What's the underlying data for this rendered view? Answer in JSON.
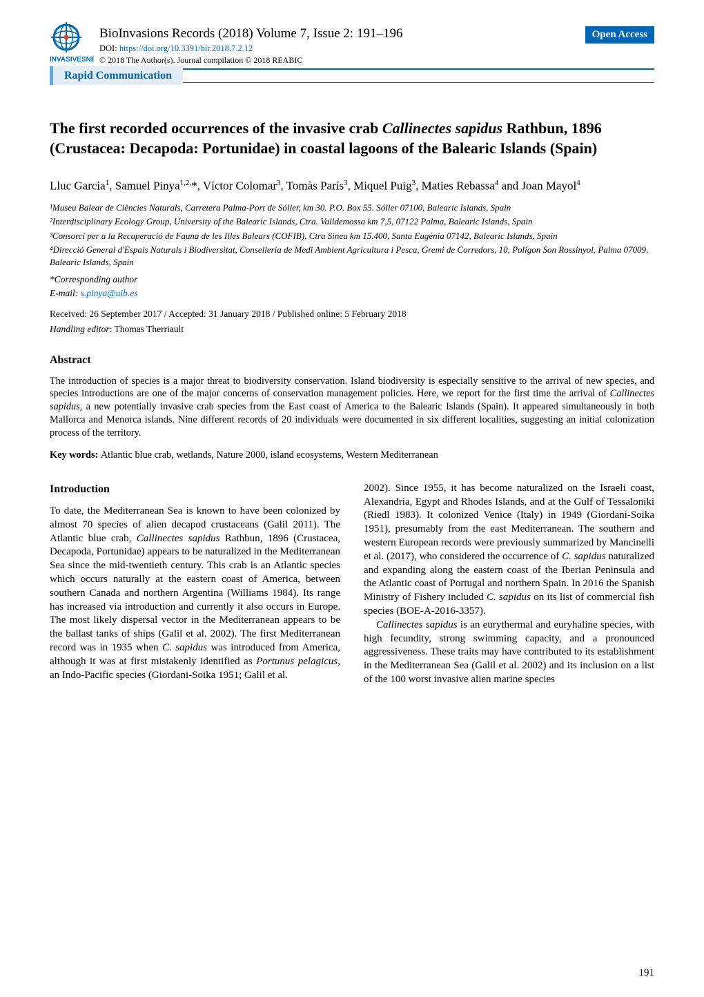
{
  "journal": {
    "title": "BioInvasions Records (2018) Volume 7, Issue 2: 191–196",
    "doi_label": "DOI: ",
    "doi_url": "https://doi.org/10.3391/bir.2018.7.2.12",
    "copyright": "© 2018 The Author(s). Journal compilation © 2018 REABIC",
    "open_access_label": "Open Access",
    "section_label": "Rapid Communication",
    "logo_text": "INVASIVESNET",
    "logo_icon": "globe-crosshair-icon"
  },
  "article": {
    "title": "The first recorded occurrences of the invasive crab Callinectes sapidus Rathbun, 1896 (Crustacea: Decapoda: Portunidae) in coastal lagoons of the Balearic Islands (Spain)",
    "title_html": "The first recorded occurrences of the invasive crab <span class=\"italic\">Callinectes sapidus</span> Rathbun, 1896 (Crustacea: Decapoda: Portunidae) in coastal lagoons of the Balearic Islands (Spain)",
    "authors_html": "Lluc Garcia<sup>1</sup>, Samuel Pinya<sup>1,2,</sup>*, Víctor Colomar<sup>3</sup>, Tomàs París<sup>3</sup>, Miquel Puig<sup>3</sup>, Maties Rebassa<sup>4</sup> and Joan Mayol<sup>4</sup>",
    "affiliations": [
      "¹Museu Balear de Ciències Naturals, Carretera Palma-Port de Sóller, km 30. P.O. Box 55. Sóller 07100, Balearic Islands, Spain",
      "²Interdisciplinary Ecology Group, University of the Balearic Islands, Ctra. Valldemossa km 7,5, 07122 Palma, Balearic Islands, Spain",
      "³Consorci per a la Recuperació de Fauna de les Illes Balears (COFIB), Ctra Sineu km 15.400, Santa Eugènia 07142, Balearic Islands, Spain",
      "⁴Direcció General d'Espais Naturals i Biodiversitat, Conselleria de Medi Ambient Agricultura i Pesca, Gremi de Corredors, 10, Polígon Son Rossinyol, Palma 07009, Balearic Islands, Spain"
    ],
    "corresponding": "*Corresponding author",
    "email_label": "E-mail: ",
    "email": "s.pinya@uib.es",
    "dates": "Received: 26 September 2017 / Accepted: 31 January 2018 / Published online: 5 February 2018",
    "handling_editor_label": "Handling editor",
    "handling_editor_name": ": Thomas Therriault"
  },
  "abstract": {
    "heading": "Abstract",
    "body": "The introduction of species is a major threat to biodiversity conservation. Island biodiversity is especially sensitive to the arrival of new species, and species introductions are one of the major concerns of conservation management policies. Here, we report for the first time the arrival of Callinectes sapidus, a new potentially invasive crab species from the East coast of America to the Balearic Islands (Spain). It appeared simultaneously in both Mallorca and Menorca islands. Nine different records of 20 individuals were documented in six different localities, suggesting an initial colonization process of the territory.",
    "body_html": "The introduction of species is a major threat to biodiversity conservation. Island biodiversity is especially sensitive to the arrival of new species, and species introductions are one of the major concerns of conservation management policies. Here, we report for the first time the arrival of <span class=\"italic\">Callinectes sapidus,</span> a new potentially invasive crab species from the East coast of America to the Balearic Islands (Spain). It appeared simultaneously in both Mallorca and Menorca islands. Nine different records of 20 individuals were documented in six different localities, suggesting an initial colonization process of the territory.",
    "keywords_label": "Key words: ",
    "keywords": "Atlantic blue crab, wetlands, Nature 2000, island ecosystems, Western Mediterranean"
  },
  "body": {
    "intro_heading": "Introduction",
    "col1_html": "To date, the Mediterranean Sea is known to have been colonized by almost 70 species of alien decapod crustaceans (Galil 2011). The Atlantic blue crab, <span class=\"italic\">Callinectes sapidus</span> Rathbun, 1896 (Crustacea, Decapoda, Portunidae) appears to be naturalized in the Mediterranean Sea since the mid-twentieth century. This crab is an Atlantic species which occurs naturally at the eastern coast of America, between southern Canada and northern Argentina (Williams 1984). Its range has increased via introduction and currently it also occurs in Europe. The most likely dispersal vector in the Mediterranean appears to be the ballast tanks of ships (Galil et al. 2002). The first Mediterranean record was in 1935 when <span class=\"italic\">C. sapidus</span> was introduced from America, although it was at first mistakenly identified as <span class=\"italic\">Portunus pelagicus,</span> an Indo-Pacific species (Giordani-Soika 1951; Galil et al.",
    "col2_p1_html": "2002). Since 1955, it has become naturalized on the Israeli coast, Alexandria, Egypt and Rhodes Islands, and at the Gulf of Tessaloniki (Riedl 1983). It colonized Venice (Italy) in 1949 (Giordani-Soika 1951), presumably from the east Mediterranean. The southern and western European records were previously summarized by Mancinelli et al. (2017), who considered the occurrence of <span class=\"italic\">C. sapidus</span> naturalized and expanding along the eastern coast of the Iberian Peninsula and the Atlantic coast of Portugal and northern Spain. In 2016 the Spanish Ministry of Fishery included <span class=\"italic\">C. sapidus</span> on its list of commercial fish species (BOE-A-2016-3357).",
    "col2_p2_html": "<span class=\"italic\">Callinectes sapidus</span> is an eurythermal and euryhaline species, with high fecundity, strong swimming capacity, and a pronounced aggressiveness. These traits may have contributed to its establishment in the Mediterranean Sea (Galil et al. 2002) and its inclusion on a list of the 100 worst invasive alien marine species"
  },
  "page_number": "191",
  "colors": {
    "brand_blue": "#0066b3",
    "link_blue": "#0066cc",
    "rapid_bg": "#e3ecf5",
    "rapid_border": "#6ba5d6",
    "text": "#000000",
    "background": "#ffffff"
  }
}
